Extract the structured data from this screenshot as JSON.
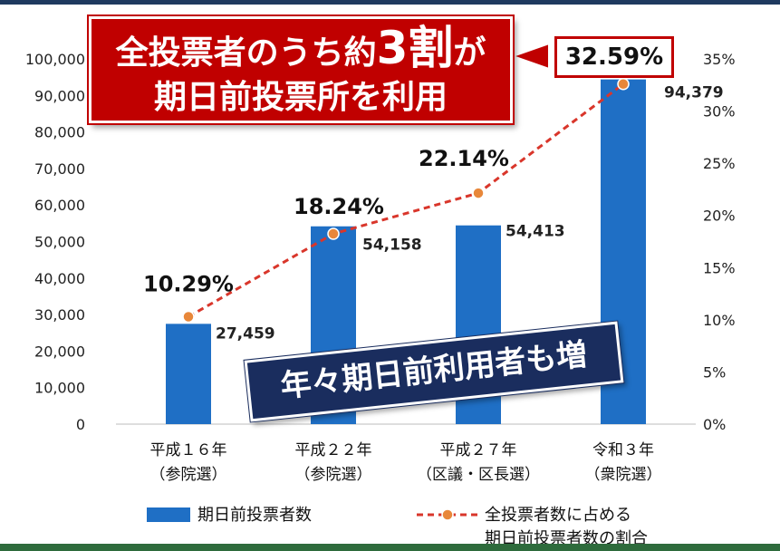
{
  "chart_data": {
    "type": "bar",
    "categories": [
      {
        "line1": "平成１６年",
        "line2": "（参院選）"
      },
      {
        "line1": "平成２２年",
        "line2": "（参院選）"
      },
      {
        "line1": "平成２７年",
        "line2": "（区議・区長選）"
      },
      {
        "line1": "令和３年",
        "line2": "（衆院選）"
      }
    ],
    "series": [
      {
        "name": "期日前投票者数",
        "type": "bar",
        "axis": "left",
        "values": [
          27459,
          54158,
          54413,
          94379
        ],
        "labels": [
          "27,459",
          "54,158",
          "54,413",
          "94,379"
        ],
        "color": "#1f6fc5"
      },
      {
        "name": "全投票者数に占める期日前投票者数の割合",
        "type": "line",
        "axis": "right",
        "values": [
          10.29,
          18.24,
          22.14,
          32.59
        ],
        "labels": [
          "10.29%",
          "18.24%",
          "22.14%",
          "32.59%"
        ],
        "color": "#d9362b",
        "marker_color": "#e8873a"
      }
    ],
    "ylim_left": [
      0,
      100000
    ],
    "ylim_right": [
      0,
      35
    ],
    "yticks_left": [
      "0",
      "10,000",
      "20,000",
      "30,000",
      "40,000",
      "50,000",
      "60,000",
      "70,000",
      "80,000",
      "90,000",
      "100,000"
    ],
    "yticks_right": [
      "0%",
      "5%",
      "10%",
      "15%",
      "20%",
      "25%",
      "30%",
      "35%"
    ],
    "grid": false,
    "legend_position": "bottom"
  },
  "annotations": {
    "banner_red_pre": "全投票者のうち約",
    "banner_red_big": "3割",
    "banner_red_post": "が",
    "banner_red_line2": "期日前投票所を利用",
    "banner_navy": "年々期日前利用者も増"
  },
  "legend": {
    "bar_label": "期日前投票者数",
    "line_label_line1": "全投票者数に占める",
    "line_label_line2": "期日前投票者数の割合"
  },
  "colors": {
    "bar": "#1f6fc5",
    "line": "#d9362b",
    "marker": "#e8873a",
    "banner_red": "#c00000",
    "banner_navy": "#1a2d5e"
  }
}
